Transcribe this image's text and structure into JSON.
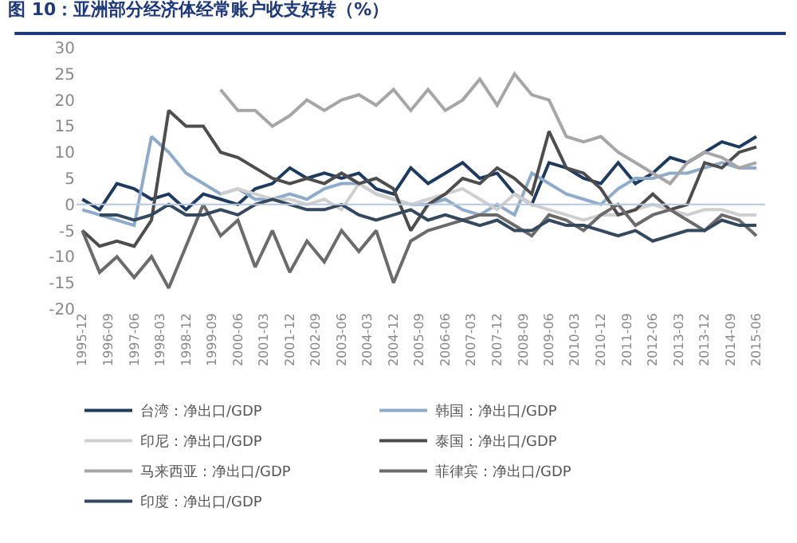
{
  "chart_data": {
    "type": "line",
    "title": "图 10：亚洲部分经济体经常账户收支好转（%）",
    "x": [
      "1995-12",
      "1996-06",
      "1996-12",
      "1997-06",
      "1997-12",
      "1998-06",
      "1998-12",
      "1999-06",
      "1999-12",
      "2000-06",
      "2000-12",
      "2001-06",
      "2001-12",
      "2002-06",
      "2002-12",
      "2003-06",
      "2003-12",
      "2004-06",
      "2004-12",
      "2005-06",
      "2005-12",
      "2006-06",
      "2006-12",
      "2007-06",
      "2007-12",
      "2008-06",
      "2008-12",
      "2009-06",
      "2009-12",
      "2010-06",
      "2010-12",
      "2011-06",
      "2011-12",
      "2012-06",
      "2012-12",
      "2013-06",
      "2013-12",
      "2014-06",
      "2014-12",
      "2015-06"
    ],
    "series": [
      {
        "name": "台湾：净出口/GDP",
        "color": "#1f3a5f",
        "values": [
          1,
          -1,
          4,
          3,
          1,
          2,
          -1,
          2,
          1,
          0,
          3,
          4,
          7,
          5,
          6,
          5,
          6,
          3,
          2,
          7,
          4,
          6,
          8,
          5,
          6,
          2,
          0,
          8,
          7,
          5,
          4,
          8,
          4,
          6,
          9,
          8,
          10,
          12,
          11,
          13
        ]
      },
      {
        "name": "韩国：净出口/GDP",
        "color": "#8fabcc",
        "values": [
          -1,
          -2,
          -3,
          -4,
          13,
          10,
          6,
          4,
          2,
          3,
          1,
          1,
          2,
          1,
          3,
          4,
          4,
          2,
          1,
          0,
          0,
          1,
          -1,
          -2,
          0,
          -2,
          6,
          4,
          2,
          1,
          0,
          3,
          5,
          5,
          6,
          6,
          7,
          8,
          7,
          7
        ]
      },
      {
        "name": "印尼：净出口/GDP",
        "color": "#cfcfcf",
        "values": [
          null,
          null,
          null,
          null,
          null,
          null,
          null,
          null,
          2,
          3,
          2,
          1,
          1,
          0,
          1,
          -1,
          4,
          2,
          1,
          0,
          1,
          2,
          3,
          1,
          -1,
          2,
          0,
          -1,
          -2,
          -3,
          -2,
          -2,
          -1,
          0,
          -1,
          -2,
          -1,
          -1,
          -2,
          -2
        ]
      },
      {
        "name": "泰国：净出口/GDP",
        "color": "#4d4d4d",
        "values": [
          -5,
          -8,
          -7,
          -8,
          -3,
          18,
          15,
          15,
          10,
          9,
          7,
          5,
          4,
          5,
          4,
          6,
          4,
          5,
          3,
          -5,
          0,
          2,
          5,
          4,
          7,
          5,
          2,
          14,
          7,
          6,
          3,
          -2,
          -1,
          2,
          -1,
          0,
          8,
          7,
          10,
          11
        ]
      },
      {
        "name": "马来西亚：净出口/GDP",
        "color": "#a6a6a6",
        "values": [
          null,
          null,
          null,
          null,
          null,
          null,
          null,
          null,
          22,
          18,
          18,
          15,
          17,
          20,
          18,
          20,
          21,
          19,
          22,
          18,
          22,
          18,
          20,
          24,
          19,
          25,
          21,
          20,
          13,
          12,
          13,
          10,
          8,
          6,
          4,
          8,
          10,
          9,
          7,
          8
        ]
      },
      {
        "name": "菲律宾：净出口/GDP",
        "color": "#6b6b6b",
        "values": [
          -5,
          -13,
          -10,
          -14,
          -10,
          -16,
          -8,
          0,
          -6,
          -3,
          -12,
          -5,
          -13,
          -7,
          -11,
          -5,
          -9,
          -5,
          -15,
          -7,
          -5,
          -4,
          -3,
          -2,
          -2,
          -4,
          -6,
          -2,
          -3,
          -5,
          -2,
          0,
          -4,
          -2,
          -1,
          -3,
          -5,
          -2,
          -3,
          -6
        ]
      },
      {
        "name": "印度：净出口/GDP",
        "color": "#34495e",
        "values": [
          null,
          -2,
          -2,
          -3,
          -2,
          0,
          -2,
          -2,
          -1,
          -2,
          0,
          1,
          0,
          -1,
          -1,
          0,
          -2,
          -3,
          -2,
          -1,
          -3,
          -2,
          -3,
          -4,
          -3,
          -5,
          -5,
          -3,
          -4,
          -4,
          -5,
          -6,
          -5,
          -7,
          -6,
          -5,
          -5,
          -3,
          -4,
          -4
        ]
      }
    ],
    "xlim": [
      "1995-10",
      "2015-09"
    ],
    "xticks": [
      "1995-12",
      "1996-09",
      "1997-06",
      "1998-03",
      "1998-12",
      "1999-09",
      "2000-06",
      "2001-03",
      "2001-12",
      "2002-09",
      "2003-06",
      "2004-03",
      "2004-12",
      "2005-09",
      "2006-06",
      "2007-03",
      "2007-12",
      "2008-09",
      "2009-06",
      "2010-03",
      "2010-12",
      "2011-09",
      "2012-06",
      "2013-03",
      "2013-12",
      "2014-09",
      "2015-06"
    ],
    "ylim": [
      -20,
      30
    ],
    "yticks": [
      -20,
      -15,
      -10,
      -5,
      0,
      5,
      10,
      15,
      20,
      25,
      30
    ],
    "ref_lines": [
      {
        "axis": "y",
        "value": 0,
        "color": "#b8c8dc"
      }
    ],
    "grid": false,
    "legend": "bottom",
    "marker": "none",
    "line_style": "solid"
  }
}
